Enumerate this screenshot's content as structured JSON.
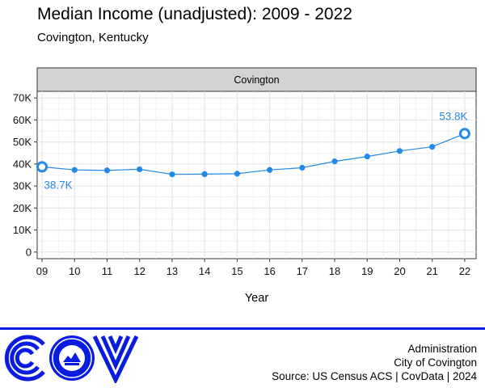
{
  "header": {
    "title": "Median Income (unadjusted): 2009 - 2022",
    "subtitle": "Covington, Kentucky"
  },
  "chart_data": {
    "type": "line",
    "title": "Median Income (unadjusted): 2009 - 2022",
    "subtitle": "Covington, Kentucky",
    "facet_label": "Covington",
    "xlabel": "Year",
    "ylabel": "",
    "x": [
      2009,
      2010,
      2011,
      2012,
      2013,
      2014,
      2015,
      2016,
      2017,
      2018,
      2019,
      2020,
      2021,
      2022
    ],
    "series": [
      {
        "values": [
          38700,
          37300,
          37100,
          37600,
          35300,
          35400,
          35600,
          37300,
          38300,
          41200,
          43400,
          45900,
          47800,
          53800
        ]
      }
    ],
    "x_tick_labels": [
      "09",
      "10",
      "11",
      "12",
      "13",
      "14",
      "15",
      "16",
      "17",
      "18",
      "19",
      "20",
      "21",
      "22"
    ],
    "y_tick_labels": [
      "0",
      "10K",
      "20K",
      "30K",
      "40K",
      "50K",
      "60K",
      "70K"
    ],
    "y_ticks": [
      0,
      10000,
      20000,
      30000,
      40000,
      50000,
      60000,
      70000
    ],
    "ylim": [
      -3000,
      73000
    ],
    "xlim": [
      2008.85,
      2022.35
    ],
    "annotations": [
      {
        "x": 2009,
        "y": 38700,
        "text": "38.7K"
      },
      {
        "x": 2022,
        "y": 53800,
        "text": "53.8K"
      }
    ],
    "grid": true,
    "colors": {
      "series": "#2389e6",
      "strip": "#d3d3d3",
      "grid": "#ececec"
    }
  },
  "footer": {
    "line1": "Administration",
    "line2": "City of Covington",
    "line3": "Source: US Census ACS | CovData | 2024"
  },
  "logo": {
    "text": "COV",
    "seal_text": "CITY OF COVINGTON KENTUCKY",
    "color": "#0a1ce0"
  }
}
